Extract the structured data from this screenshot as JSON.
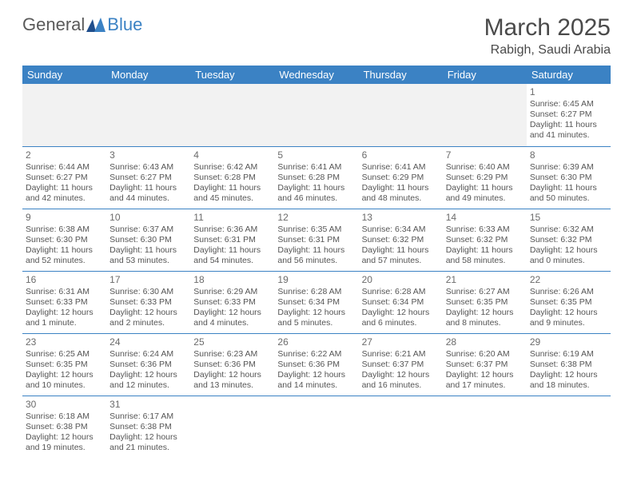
{
  "logo": {
    "general": "General",
    "blue": "Blue"
  },
  "title": "March 2025",
  "location": "Rabigh, Saudi Arabia",
  "colors": {
    "header_bg": "#3b82c4",
    "header_fg": "#ffffff",
    "day_border": "#3b82c4",
    "blank_bg": "#f2f2f2",
    "text": "#555555"
  },
  "weekdays": [
    "Sunday",
    "Monday",
    "Tuesday",
    "Wednesday",
    "Thursday",
    "Friday",
    "Saturday"
  ],
  "weeks": [
    [
      null,
      null,
      null,
      null,
      null,
      null,
      {
        "n": "1",
        "sr": "Sunrise: 6:45 AM",
        "ss": "Sunset: 6:27 PM",
        "dl": "Daylight: 11 hours and 41 minutes."
      }
    ],
    [
      {
        "n": "2",
        "sr": "Sunrise: 6:44 AM",
        "ss": "Sunset: 6:27 PM",
        "dl": "Daylight: 11 hours and 42 minutes."
      },
      {
        "n": "3",
        "sr": "Sunrise: 6:43 AM",
        "ss": "Sunset: 6:27 PM",
        "dl": "Daylight: 11 hours and 44 minutes."
      },
      {
        "n": "4",
        "sr": "Sunrise: 6:42 AM",
        "ss": "Sunset: 6:28 PM",
        "dl": "Daylight: 11 hours and 45 minutes."
      },
      {
        "n": "5",
        "sr": "Sunrise: 6:41 AM",
        "ss": "Sunset: 6:28 PM",
        "dl": "Daylight: 11 hours and 46 minutes."
      },
      {
        "n": "6",
        "sr": "Sunrise: 6:41 AM",
        "ss": "Sunset: 6:29 PM",
        "dl": "Daylight: 11 hours and 48 minutes."
      },
      {
        "n": "7",
        "sr": "Sunrise: 6:40 AM",
        "ss": "Sunset: 6:29 PM",
        "dl": "Daylight: 11 hours and 49 minutes."
      },
      {
        "n": "8",
        "sr": "Sunrise: 6:39 AM",
        "ss": "Sunset: 6:30 PM",
        "dl": "Daylight: 11 hours and 50 minutes."
      }
    ],
    [
      {
        "n": "9",
        "sr": "Sunrise: 6:38 AM",
        "ss": "Sunset: 6:30 PM",
        "dl": "Daylight: 11 hours and 52 minutes."
      },
      {
        "n": "10",
        "sr": "Sunrise: 6:37 AM",
        "ss": "Sunset: 6:30 PM",
        "dl": "Daylight: 11 hours and 53 minutes."
      },
      {
        "n": "11",
        "sr": "Sunrise: 6:36 AM",
        "ss": "Sunset: 6:31 PM",
        "dl": "Daylight: 11 hours and 54 minutes."
      },
      {
        "n": "12",
        "sr": "Sunrise: 6:35 AM",
        "ss": "Sunset: 6:31 PM",
        "dl": "Daylight: 11 hours and 56 minutes."
      },
      {
        "n": "13",
        "sr": "Sunrise: 6:34 AM",
        "ss": "Sunset: 6:32 PM",
        "dl": "Daylight: 11 hours and 57 minutes."
      },
      {
        "n": "14",
        "sr": "Sunrise: 6:33 AM",
        "ss": "Sunset: 6:32 PM",
        "dl": "Daylight: 11 hours and 58 minutes."
      },
      {
        "n": "15",
        "sr": "Sunrise: 6:32 AM",
        "ss": "Sunset: 6:32 PM",
        "dl": "Daylight: 12 hours and 0 minutes."
      }
    ],
    [
      {
        "n": "16",
        "sr": "Sunrise: 6:31 AM",
        "ss": "Sunset: 6:33 PM",
        "dl": "Daylight: 12 hours and 1 minute."
      },
      {
        "n": "17",
        "sr": "Sunrise: 6:30 AM",
        "ss": "Sunset: 6:33 PM",
        "dl": "Daylight: 12 hours and 2 minutes."
      },
      {
        "n": "18",
        "sr": "Sunrise: 6:29 AM",
        "ss": "Sunset: 6:33 PM",
        "dl": "Daylight: 12 hours and 4 minutes."
      },
      {
        "n": "19",
        "sr": "Sunrise: 6:28 AM",
        "ss": "Sunset: 6:34 PM",
        "dl": "Daylight: 12 hours and 5 minutes."
      },
      {
        "n": "20",
        "sr": "Sunrise: 6:28 AM",
        "ss": "Sunset: 6:34 PM",
        "dl": "Daylight: 12 hours and 6 minutes."
      },
      {
        "n": "21",
        "sr": "Sunrise: 6:27 AM",
        "ss": "Sunset: 6:35 PM",
        "dl": "Daylight: 12 hours and 8 minutes."
      },
      {
        "n": "22",
        "sr": "Sunrise: 6:26 AM",
        "ss": "Sunset: 6:35 PM",
        "dl": "Daylight: 12 hours and 9 minutes."
      }
    ],
    [
      {
        "n": "23",
        "sr": "Sunrise: 6:25 AM",
        "ss": "Sunset: 6:35 PM",
        "dl": "Daylight: 12 hours and 10 minutes."
      },
      {
        "n": "24",
        "sr": "Sunrise: 6:24 AM",
        "ss": "Sunset: 6:36 PM",
        "dl": "Daylight: 12 hours and 12 minutes."
      },
      {
        "n": "25",
        "sr": "Sunrise: 6:23 AM",
        "ss": "Sunset: 6:36 PM",
        "dl": "Daylight: 12 hours and 13 minutes."
      },
      {
        "n": "26",
        "sr": "Sunrise: 6:22 AM",
        "ss": "Sunset: 6:36 PM",
        "dl": "Daylight: 12 hours and 14 minutes."
      },
      {
        "n": "27",
        "sr": "Sunrise: 6:21 AM",
        "ss": "Sunset: 6:37 PM",
        "dl": "Daylight: 12 hours and 16 minutes."
      },
      {
        "n": "28",
        "sr": "Sunrise: 6:20 AM",
        "ss": "Sunset: 6:37 PM",
        "dl": "Daylight: 12 hours and 17 minutes."
      },
      {
        "n": "29",
        "sr": "Sunrise: 6:19 AM",
        "ss": "Sunset: 6:38 PM",
        "dl": "Daylight: 12 hours and 18 minutes."
      }
    ],
    [
      {
        "n": "30",
        "sr": "Sunrise: 6:18 AM",
        "ss": "Sunset: 6:38 PM",
        "dl": "Daylight: 12 hours and 19 minutes."
      },
      {
        "n": "31",
        "sr": "Sunrise: 6:17 AM",
        "ss": "Sunset: 6:38 PM",
        "dl": "Daylight: 12 hours and 21 minutes."
      },
      null,
      null,
      null,
      null,
      null
    ]
  ]
}
